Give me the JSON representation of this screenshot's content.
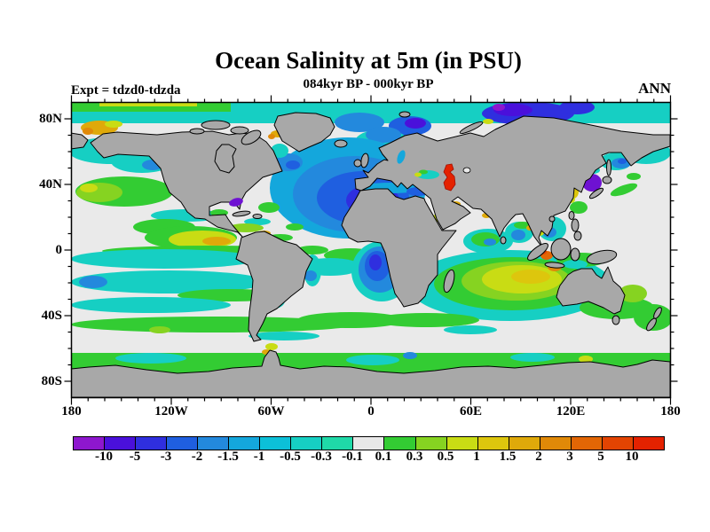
{
  "header": {
    "title": "Ocean Salinity at 5m (in PSU)",
    "subtitle": "084kyr BP - 000kyr BP",
    "experiment_label": "Expt = tdzd0-tdzda",
    "season_label": "ANN"
  },
  "chart_data": {
    "type": "heatmap",
    "subtype": "filled-contour world map, equirectangular projection",
    "title": "Ocean Salinity at 5m (in PSU)",
    "subtitle": "084kyr BP - 000kyr BP",
    "units": "PSU (salinity anomaly, experiment tdzd0 minus tdzda, 084kyr BP - 000kyr BP, annual mean)",
    "x_axis": {
      "tick_labels": [
        "180",
        "120W",
        "60W",
        "0",
        "60E",
        "120E",
        "180"
      ],
      "tick_lons": [
        -180,
        -120,
        -60,
        0,
        60,
        120,
        180
      ],
      "minor_step_deg": 10,
      "range_deg": [
        -180,
        180
      ]
    },
    "y_axis": {
      "tick_labels": [
        "80N",
        "40N",
        "0",
        "40S",
        "80S"
      ],
      "tick_lats": [
        80,
        40,
        0,
        -40,
        -80
      ],
      "minor_step_deg": 10,
      "range_deg": [
        -90,
        90
      ]
    },
    "colorbar": {
      "boundary_labels": [
        "-10",
        "-5",
        "-3",
        "-2",
        "-1.5",
        "-1",
        "-0.5",
        "-0.3",
        "-0.1",
        "0.1",
        "0.3",
        "0.5",
        "1",
        "1.5",
        "2",
        "3",
        "5",
        "10"
      ],
      "colors": [
        "#8E17CE",
        "#4A10DB",
        "#2F2FDF",
        "#1F5FE0",
        "#2389DD",
        "#14A7DC",
        "#0CC0D8",
        "#16CFC3",
        "#1FD9A8",
        "#E8E8E8",
        "#33CC33",
        "#86D321",
        "#C9DC14",
        "#DDC60D",
        "#DFA90A",
        "#E08908",
        "#E26605",
        "#E34402",
        "#E42200"
      ]
    },
    "land_color": "#A8A8A8",
    "neutral_ocean_color": "#EAEAEA",
    "notable_features": [
      "Strong negative anomaly (deep blue, -2 to -5) across the North Atlantic and Barents Sea",
      "Negative (blue/indigo) band in Arctic Ocean north of Siberia",
      "Strong positive anomaly (red, >10) over the Caspian Sea",
      "Strong negative anomaly (purple, < -5) in the Sea of Japan",
      "Positive anomaly (yellow/gold, 0.5 to 2) in the eastern Indian Ocean northwest of Australia",
      "Negative blue cell in the South Atlantic west of southern Africa",
      "Green (0.1-0.3) circumpolar band along the Antarctic coast and near 45S",
      "Yellow positive band in the eastern tropical Pacific off Central America",
      "Mostly neutral (near 0, light gray) subtropical gyres"
    ]
  }
}
